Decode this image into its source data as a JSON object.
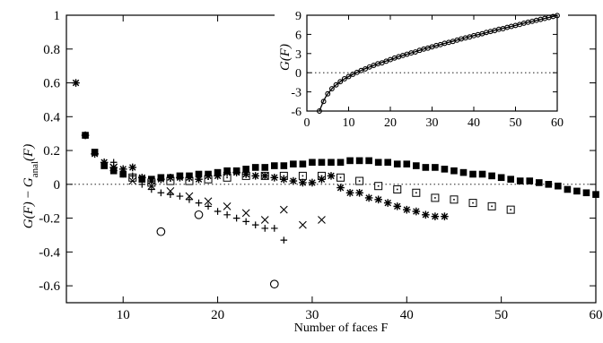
{
  "chart_data": [
    {
      "type": "scatter",
      "xlabel": "Number of faces F",
      "ylabel": "G(F) - G_anal(F)",
      "ylabel_parts": {
        "main": "G(F) − G",
        "sub": "anal",
        "tail": "(F)"
      },
      "xlim": [
        4,
        60
      ],
      "ylim": [
        -0.7,
        1.0
      ],
      "xticks": [
        10,
        20,
        30,
        40,
        50,
        60
      ],
      "yticks": [
        -0.6,
        -0.4,
        -0.2,
        0,
        0.2,
        0.4,
        0.6,
        0.8,
        1
      ],
      "ytick_labels": [
        "-0.6",
        "-0.4",
        "-0.2",
        "0",
        "0.2",
        "0.4",
        "0.6",
        "0.8",
        "1"
      ],
      "reference_line": {
        "y": 0,
        "style": "dotted"
      },
      "grid": false,
      "series": [
        {
          "marker": "filled-square",
          "x": [
            6,
            7,
            8,
            9,
            10,
            11,
            12,
            13,
            14,
            15,
            16,
            17,
            18,
            19,
            20,
            21,
            22,
            23,
            24,
            25,
            26,
            27,
            28,
            29,
            30,
            31,
            32,
            33,
            34,
            35,
            36,
            37,
            38,
            39,
            40,
            41,
            42,
            43,
            44,
            45,
            46,
            47,
            48,
            49,
            50,
            51,
            52,
            53,
            54,
            55,
            56,
            57,
            58,
            59,
            60
          ],
          "y": [
            0.29,
            0.19,
            0.11,
            0.08,
            0.06,
            0.04,
            0.03,
            0.03,
            0.04,
            0.04,
            0.05,
            0.05,
            0.06,
            0.06,
            0.07,
            0.08,
            0.08,
            0.09,
            0.1,
            0.1,
            0.11,
            0.11,
            0.12,
            0.12,
            0.13,
            0.13,
            0.13,
            0.13,
            0.14,
            0.14,
            0.14,
            0.13,
            0.13,
            0.12,
            0.12,
            0.11,
            0.1,
            0.1,
            0.09,
            0.08,
            0.07,
            0.06,
            0.06,
            0.05,
            0.04,
            0.03,
            0.02,
            0.02,
            0.01,
            0.0,
            -0.01,
            -0.03,
            -0.04,
            -0.05,
            -0.06
          ]
        },
        {
          "marker": "open-square",
          "x": [
            11,
            13,
            15,
            17,
            19,
            21,
            23,
            25,
            27,
            29,
            31,
            33,
            35,
            37,
            39,
            41,
            43,
            45,
            47,
            49,
            51
          ],
          "y": [
            0.04,
            0.01,
            0.02,
            0.02,
            0.03,
            0.04,
            0.05,
            0.05,
            0.05,
            0.05,
            0.05,
            0.04,
            0.02,
            -0.01,
            -0.03,
            -0.05,
            -0.08,
            -0.09,
            -0.11,
            -0.13,
            -0.15
          ]
        },
        {
          "marker": "star",
          "x": [
            5,
            6,
            7,
            8,
            9,
            10,
            11,
            12,
            13,
            14,
            15,
            16,
            17,
            18,
            19,
            20,
            21,
            22,
            23,
            24,
            25,
            26,
            27,
            28,
            29,
            30,
            31,
            32,
            33,
            34,
            35,
            36,
            37,
            38,
            39,
            40,
            41,
            42,
            43,
            44
          ],
          "y": [
            0.6,
            0.29,
            0.18,
            0.13,
            0.1,
            0.09,
            0.1,
            0.04,
            0.02,
            0.03,
            0.04,
            0.04,
            0.04,
            0.03,
            0.05,
            0.05,
            0.07,
            0.07,
            0.06,
            0.05,
            0.05,
            0.04,
            0.03,
            0.02,
            0.01,
            0.01,
            0.03,
            0.05,
            -0.02,
            -0.05,
            -0.05,
            -0.08,
            -0.09,
            -0.11,
            -0.13,
            -0.15,
            -0.16,
            -0.18,
            -0.19,
            -0.19
          ]
        },
        {
          "marker": "x-cross",
          "x": [
            9,
            11,
            13,
            15,
            17,
            19,
            21,
            23,
            25,
            27,
            29,
            31
          ],
          "y": [
            0.1,
            0.02,
            -0.01,
            -0.04,
            -0.07,
            -0.1,
            -0.13,
            -0.17,
            -0.21,
            -0.15,
            -0.24,
            -0.21
          ]
        },
        {
          "marker": "plus",
          "x": [
            9,
            10,
            11,
            12,
            13,
            14,
            15,
            16,
            17,
            18,
            19,
            20,
            21,
            22,
            23,
            24,
            25,
            26,
            27
          ],
          "y": [
            0.13,
            0.06,
            0.05,
            0.0,
            -0.03,
            -0.05,
            -0.06,
            -0.07,
            -0.09,
            -0.11,
            -0.13,
            -0.16,
            -0.18,
            -0.2,
            -0.22,
            -0.24,
            -0.26,
            -0.26,
            -0.33
          ]
        },
        {
          "marker": "open-circle",
          "x": [
            14,
            18,
            26
          ],
          "y": [
            -0.28,
            -0.18,
            -0.59
          ]
        }
      ]
    },
    {
      "type": "scatter",
      "role": "inset",
      "xlabel": "",
      "ylabel": "G(F)",
      "xlim": [
        0,
        60
      ],
      "ylim": [
        -6,
        9
      ],
      "xticks": [
        0,
        10,
        20,
        30,
        40,
        50,
        60
      ],
      "yticks": [
        -6,
        -3,
        0,
        3,
        6,
        9
      ],
      "reference_line": {
        "y": 0,
        "style": "dotted"
      },
      "curve": "G_anal(F)",
      "curve_x": [
        3,
        3.5,
        4,
        4.5,
        5,
        6,
        7,
        8,
        9,
        10,
        11,
        12,
        13,
        14,
        15,
        16,
        18,
        20,
        22,
        24,
        26,
        28,
        30,
        32,
        34,
        36,
        38,
        40,
        42,
        44,
        46,
        48,
        50,
        52,
        54,
        56,
        58,
        60
      ],
      "curve_y": [
        -6.2,
        -5.2,
        -4.4,
        -3.8,
        -3.3,
        -2.5,
        -1.9,
        -1.4,
        -0.95,
        -0.6,
        -0.25,
        0.05,
        0.35,
        0.65,
        0.9,
        1.15,
        1.6,
        2.05,
        2.5,
        2.9,
        3.3,
        3.7,
        4.05,
        4.4,
        4.75,
        5.1,
        5.45,
        5.8,
        6.1,
        6.45,
        6.8,
        7.1,
        7.4,
        7.75,
        8.05,
        8.35,
        8.65,
        8.95
      ],
      "series": [
        {
          "marker": "open-circle",
          "x": [
            3,
            4,
            5,
            6,
            7,
            8,
            9,
            10,
            11,
            12,
            13,
            14,
            15,
            16,
            17,
            18,
            19,
            20,
            21,
            22,
            23,
            24,
            25,
            26,
            27,
            28,
            29,
            30,
            31,
            32,
            33,
            34,
            35,
            36,
            37,
            38,
            39,
            40,
            41,
            42,
            43,
            44,
            45,
            46,
            47,
            48,
            49,
            50,
            51,
            52,
            53,
            54,
            55,
            56,
            57,
            58,
            59,
            60
          ],
          "y": [
            -6.0,
            -4.5,
            -3.3,
            -2.5,
            -1.9,
            -1.4,
            -0.95,
            -0.6,
            -0.25,
            0.05,
            0.35,
            0.6,
            0.9,
            1.15,
            1.4,
            1.55,
            1.8,
            2.05,
            2.3,
            2.5,
            2.7,
            2.9,
            3.1,
            3.25,
            3.5,
            3.7,
            3.85,
            4.05,
            4.25,
            4.4,
            4.6,
            4.75,
            4.9,
            5.1,
            5.3,
            5.45,
            5.6,
            5.8,
            5.95,
            6.1,
            6.3,
            6.45,
            6.6,
            6.8,
            6.9,
            7.1,
            7.25,
            7.4,
            7.55,
            7.75,
            7.9,
            8.05,
            8.2,
            8.35,
            8.5,
            8.65,
            8.8,
            8.95
          ]
        }
      ]
    }
  ]
}
